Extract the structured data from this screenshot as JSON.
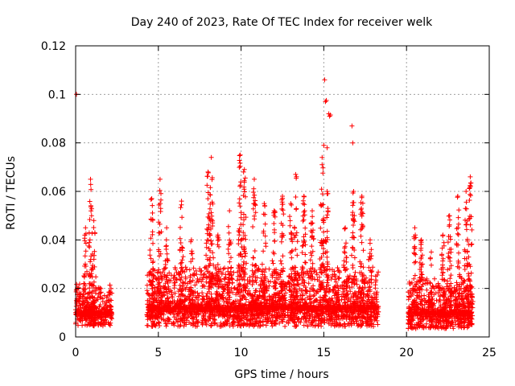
{
  "chart_data": {
    "type": "scatter",
    "title": "Day 240 of 2023, Rate Of TEC Index for receiver welk",
    "xlabel": "GPS time / hours",
    "ylabel": "ROTI / TECUs",
    "xlim": [
      0,
      25
    ],
    "ylim": [
      0,
      0.12
    ],
    "xticks": [
      "0",
      "5",
      "10",
      "15",
      "20",
      "25"
    ],
    "yticks": [
      "0",
      "0.02",
      "0.04",
      "0.06",
      "0.08",
      "0.1",
      "0.12"
    ],
    "grid": true,
    "marker": "plus",
    "color": "#ff0000",
    "segments": [
      {
        "x_start": 0.0,
        "x_end": 2.2,
        "base": 0.01,
        "spread": 0.01
      },
      {
        "x_start": 4.3,
        "x_end": 18.3,
        "base": 0.012,
        "spread": 0.014
      },
      {
        "x_start": 20.1,
        "x_end": 24.0,
        "base": 0.01,
        "spread": 0.012
      }
    ],
    "peaks": [
      {
        "x": 0.6,
        "y": 0.045
      },
      {
        "x": 0.9,
        "y": 0.065
      },
      {
        "x": 1.1,
        "y": 0.048
      },
      {
        "x": 4.6,
        "y": 0.057
      },
      {
        "x": 5.1,
        "y": 0.065
      },
      {
        "x": 5.5,
        "y": 0.045
      },
      {
        "x": 6.4,
        "y": 0.056
      },
      {
        "x": 7.0,
        "y": 0.04
      },
      {
        "x": 8.0,
        "y": 0.068
      },
      {
        "x": 8.2,
        "y": 0.074
      },
      {
        "x": 8.6,
        "y": 0.042
      },
      {
        "x": 9.3,
        "y": 0.052
      },
      {
        "x": 9.95,
        "y": 0.075
      },
      {
        "x": 10.2,
        "y": 0.069
      },
      {
        "x": 10.8,
        "y": 0.065
      },
      {
        "x": 11.4,
        "y": 0.055
      },
      {
        "x": 12.0,
        "y": 0.052
      },
      {
        "x": 12.5,
        "y": 0.058
      },
      {
        "x": 13.0,
        "y": 0.055
      },
      {
        "x": 13.3,
        "y": 0.067
      },
      {
        "x": 13.8,
        "y": 0.058
      },
      {
        "x": 14.3,
        "y": 0.052
      },
      {
        "x": 14.9,
        "y": 0.074
      },
      {
        "x": 15.2,
        "y": 0.06
      },
      {
        "x": 16.3,
        "y": 0.045
      },
      {
        "x": 16.8,
        "y": 0.06
      },
      {
        "x": 17.3,
        "y": 0.058
      },
      {
        "x": 17.8,
        "y": 0.04
      },
      {
        "x": 20.5,
        "y": 0.045
      },
      {
        "x": 20.9,
        "y": 0.04
      },
      {
        "x": 21.5,
        "y": 0.035
      },
      {
        "x": 22.2,
        "y": 0.042
      },
      {
        "x": 22.6,
        "y": 0.05
      },
      {
        "x": 23.1,
        "y": 0.058
      },
      {
        "x": 23.6,
        "y": 0.06
      },
      {
        "x": 23.85,
        "y": 0.066
      }
    ],
    "outliers": [
      {
        "x": 0.05,
        "y": 0.1
      },
      {
        "x": 15.05,
        "y": 0.106
      },
      {
        "x": 15.1,
        "y": 0.097
      },
      {
        "x": 15.15,
        "y": 0.0975
      },
      {
        "x": 15.3,
        "y": 0.092
      },
      {
        "x": 15.35,
        "y": 0.091
      },
      {
        "x": 15.4,
        "y": 0.0915
      },
      {
        "x": 16.7,
        "y": 0.087
      },
      {
        "x": 16.75,
        "y": 0.08
      },
      {
        "x": 15.0,
        "y": 0.079
      },
      {
        "x": 15.2,
        "y": 0.078
      }
    ]
  }
}
